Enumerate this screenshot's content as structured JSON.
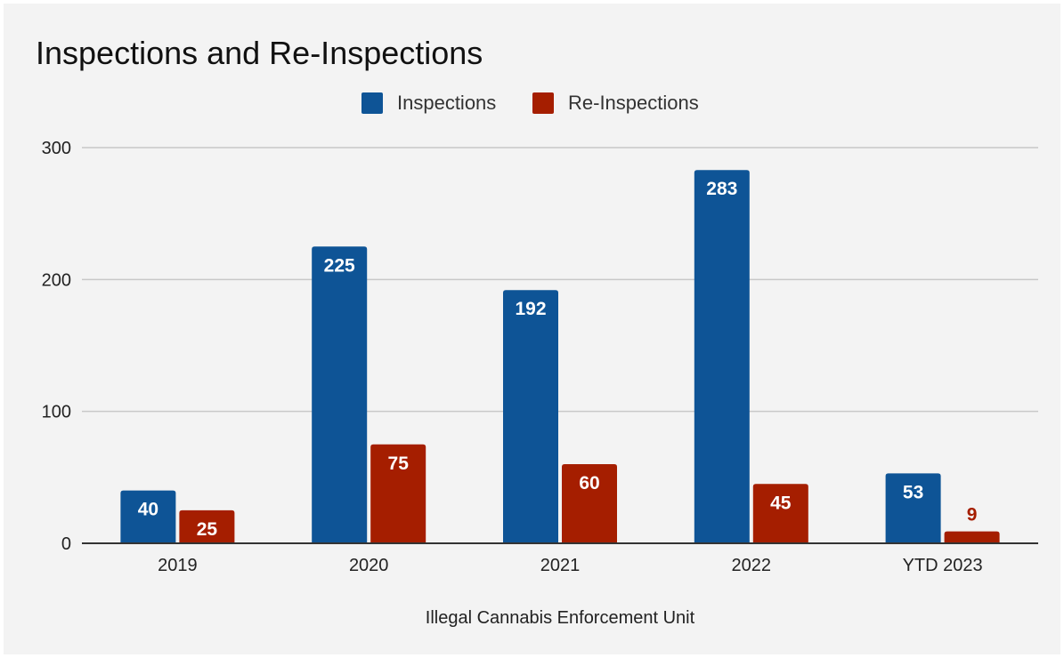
{
  "chart_data": {
    "type": "bar",
    "title": "Inspections and Re-Inspections",
    "xlabel": "Illegal Cannabis Enforcement Unit",
    "ylabel": "",
    "categories": [
      "2019",
      "2020",
      "2021",
      "2022",
      "YTD 2023"
    ],
    "series": [
      {
        "name": "Inspections",
        "color": "#0e5496",
        "values": [
          40,
          225,
          192,
          283,
          53
        ]
      },
      {
        "name": "Re-Inspections",
        "color": "#a51e00",
        "values": [
          25,
          75,
          60,
          45,
          9
        ]
      }
    ],
    "ylim": [
      0,
      300
    ],
    "yticks": [
      0,
      100,
      200,
      300
    ],
    "grid": true,
    "legend_position": "top-center",
    "data_labels": true
  }
}
